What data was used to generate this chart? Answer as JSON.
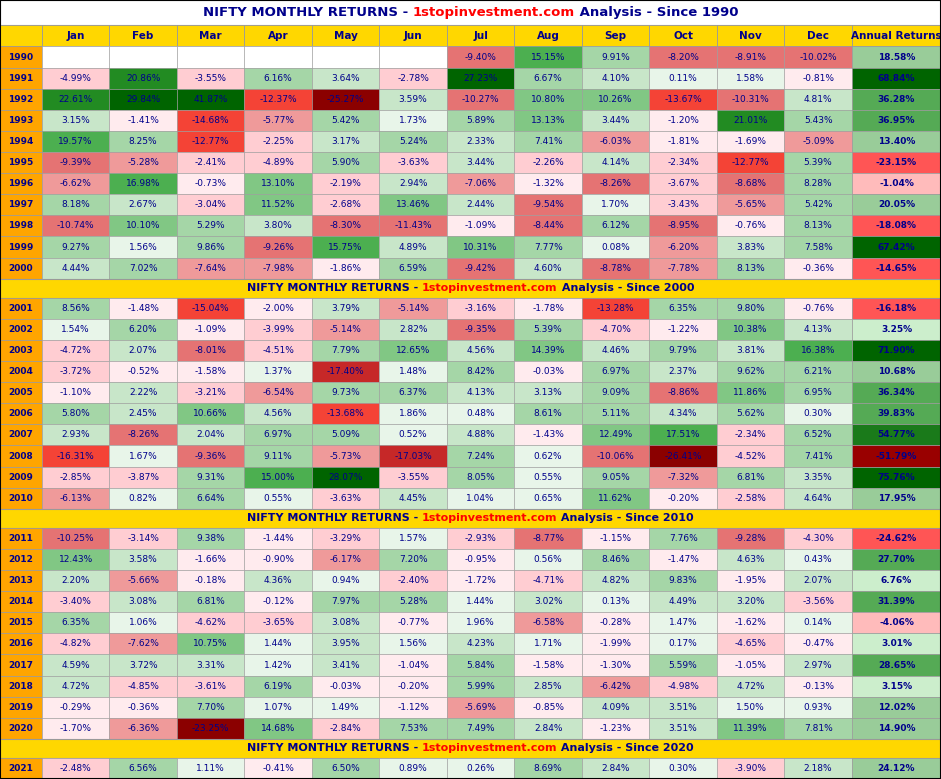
{
  "rows": [
    {
      "year": 1990,
      "Jan": null,
      "Feb": null,
      "Mar": null,
      "Apr": null,
      "May": null,
      "Jun": null,
      "Jul": -9.4,
      "Aug": 15.15,
      "Sep": 9.91,
      "Oct": -8.2,
      "Nov": -8.91,
      "Dec": -10.02,
      "Annual": 18.58
    },
    {
      "year": 1991,
      "Jan": -4.99,
      "Feb": 20.86,
      "Mar": -3.55,
      "Apr": 6.16,
      "May": 3.64,
      "Jun": -2.78,
      "Jul": 27.23,
      "Aug": 6.67,
      "Sep": 4.1,
      "Oct": 0.11,
      "Nov": 1.58,
      "Dec": -0.81,
      "Annual": 68.84
    },
    {
      "year": 1992,
      "Jan": 22.61,
      "Feb": 29.84,
      "Mar": 41.87,
      "Apr": -12.37,
      "May": -25.27,
      "Jun": 3.59,
      "Jul": -10.27,
      "Aug": 10.8,
      "Sep": 10.26,
      "Oct": -13.67,
      "Nov": -10.31,
      "Dec": 4.81,
      "Annual": 36.28
    },
    {
      "year": 1993,
      "Jan": 3.15,
      "Feb": -1.41,
      "Mar": -14.68,
      "Apr": -5.77,
      "May": 5.42,
      "Jun": 1.73,
      "Jul": 5.89,
      "Aug": 13.13,
      "Sep": 3.44,
      "Oct": -1.2,
      "Nov": 21.01,
      "Dec": 5.43,
      "Annual": 36.95
    },
    {
      "year": 1994,
      "Jan": 19.57,
      "Feb": 8.25,
      "Mar": -12.77,
      "Apr": -2.25,
      "May": 3.17,
      "Jun": 5.24,
      "Jul": 2.33,
      "Aug": 7.41,
      "Sep": -6.03,
      "Oct": -1.81,
      "Nov": -1.69,
      "Dec": -5.09,
      "Annual": 13.4
    },
    {
      "year": 1995,
      "Jan": -9.39,
      "Feb": -5.28,
      "Mar": -2.41,
      "Apr": -4.89,
      "May": 5.9,
      "Jun": -3.63,
      "Jul": 3.44,
      "Aug": -2.26,
      "Sep": 4.14,
      "Oct": -2.34,
      "Nov": -12.77,
      "Dec": 5.39,
      "Annual": -23.15
    },
    {
      "year": 1996,
      "Jan": -6.62,
      "Feb": 16.98,
      "Mar": -0.73,
      "Apr": 13.1,
      "May": -2.19,
      "Jun": 2.94,
      "Jul": -7.06,
      "Aug": -1.32,
      "Sep": -8.26,
      "Oct": -3.67,
      "Nov": -8.68,
      "Dec": 8.28,
      "Annual": -1.04
    },
    {
      "year": 1997,
      "Jan": 8.18,
      "Feb": 2.67,
      "Mar": -3.04,
      "Apr": 11.52,
      "May": -2.68,
      "Jun": 13.46,
      "Jul": 2.44,
      "Aug": -9.54,
      "Sep": 1.7,
      "Oct": -3.43,
      "Nov": -5.65,
      "Dec": 5.42,
      "Annual": 20.05
    },
    {
      "year": 1998,
      "Jan": -10.74,
      "Feb": 10.1,
      "Mar": 5.29,
      "Apr": 3.8,
      "May": -8.3,
      "Jun": -11.43,
      "Jul": -1.09,
      "Aug": -8.44,
      "Sep": 6.12,
      "Oct": -8.95,
      "Nov": -0.76,
      "Dec": 8.13,
      "Annual": -18.08
    },
    {
      "year": 1999,
      "Jan": 9.27,
      "Feb": 1.56,
      "Mar": 9.86,
      "Apr": -9.26,
      "May": 15.75,
      "Jun": 4.89,
      "Jul": 10.31,
      "Aug": 7.77,
      "Sep": 0.08,
      "Oct": -6.2,
      "Nov": 3.83,
      "Dec": 7.58,
      "Annual": 67.42
    },
    {
      "year": 2000,
      "Jan": 4.44,
      "Feb": 7.02,
      "Mar": -7.64,
      "Apr": -7.98,
      "May": -1.86,
      "Jun": 6.59,
      "Jul": -9.42,
      "Aug": 4.6,
      "Sep": -8.78,
      "Oct": -7.78,
      "Nov": 8.13,
      "Dec": -0.36,
      "Annual": -14.65
    },
    {
      "year": 2001,
      "Jan": 8.56,
      "Feb": -1.48,
      "Mar": -15.04,
      "Apr": -2.0,
      "May": 3.79,
      "Jun": -5.14,
      "Jul": -3.16,
      "Aug": -1.78,
      "Sep": -13.28,
      "Oct": 6.35,
      "Nov": 9.8,
      "Dec": -0.76,
      "Annual": -16.18
    },
    {
      "year": 2002,
      "Jan": 1.54,
      "Feb": 6.2,
      "Mar": -1.09,
      "Apr": -3.99,
      "May": -5.14,
      "Jun": 2.82,
      "Jul": -9.35,
      "Aug": 5.39,
      "Sep": -4.7,
      "Oct": -1.22,
      "Nov": 10.38,
      "Dec": 4.13,
      "Annual": 3.25
    },
    {
      "year": 2003,
      "Jan": -4.72,
      "Feb": 2.07,
      "Mar": -8.01,
      "Apr": -4.51,
      "May": 7.79,
      "Jun": 12.65,
      "Jul": 4.56,
      "Aug": 14.39,
      "Sep": 4.46,
      "Oct": 9.79,
      "Nov": 3.81,
      "Dec": 16.38,
      "Annual": 71.9
    },
    {
      "year": 2004,
      "Jan": -3.72,
      "Feb": -0.52,
      "Mar": -1.58,
      "Apr": 1.37,
      "May": -17.4,
      "Jun": 1.48,
      "Jul": 8.42,
      "Aug": -0.03,
      "Sep": 6.97,
      "Oct": 2.37,
      "Nov": 9.62,
      "Dec": 6.21,
      "Annual": 10.68
    },
    {
      "year": 2005,
      "Jan": -1.1,
      "Feb": 2.22,
      "Mar": -3.21,
      "Apr": -6.54,
      "May": 9.73,
      "Jun": 6.37,
      "Jul": 4.13,
      "Aug": 3.13,
      "Sep": 9.09,
      "Oct": -8.86,
      "Nov": 11.86,
      "Dec": 6.95,
      "Annual": 36.34
    },
    {
      "year": 2006,
      "Jan": 5.8,
      "Feb": 2.45,
      "Mar": 10.66,
      "Apr": 4.56,
      "May": -13.68,
      "Jun": 1.86,
      "Jul": 0.48,
      "Aug": 8.61,
      "Sep": 5.11,
      "Oct": 4.34,
      "Nov": 5.62,
      "Dec": 0.3,
      "Annual": 39.83
    },
    {
      "year": 2007,
      "Jan": 2.93,
      "Feb": -8.26,
      "Mar": 2.04,
      "Apr": 6.97,
      "May": 5.09,
      "Jun": 0.52,
      "Jul": 4.88,
      "Aug": -1.43,
      "Sep": 12.49,
      "Oct": 17.51,
      "Nov": -2.34,
      "Dec": 6.52,
      "Annual": 54.77
    },
    {
      "year": 2008,
      "Jan": -16.31,
      "Feb": 1.67,
      "Mar": -9.36,
      "Apr": 9.11,
      "May": -5.73,
      "Jun": -17.03,
      "Jul": 7.24,
      "Aug": 0.62,
      "Sep": -10.06,
      "Oct": -26.41,
      "Nov": -4.52,
      "Dec": 7.41,
      "Annual": -51.79
    },
    {
      "year": 2009,
      "Jan": -2.85,
      "Feb": -3.87,
      "Mar": 9.31,
      "Apr": 15.0,
      "May": 28.07,
      "Jun": -3.55,
      "Jul": 8.05,
      "Aug": 0.55,
      "Sep": 9.05,
      "Oct": -7.32,
      "Nov": 6.81,
      "Dec": 3.35,
      "Annual": 75.76
    },
    {
      "year": 2010,
      "Jan": -6.13,
      "Feb": 0.82,
      "Mar": 6.64,
      "Apr": 0.55,
      "May": -3.63,
      "Jun": 4.45,
      "Jul": 1.04,
      "Aug": 0.65,
      "Sep": 11.62,
      "Oct": -0.2,
      "Nov": -2.58,
      "Dec": 4.64,
      "Annual": 17.95
    },
    {
      "year": 2011,
      "Jan": -10.25,
      "Feb": -3.14,
      "Mar": 9.38,
      "Apr": -1.44,
      "May": -3.29,
      "Jun": 1.57,
      "Jul": -2.93,
      "Aug": -8.77,
      "Sep": -1.15,
      "Oct": 7.76,
      "Nov": -9.28,
      "Dec": -4.3,
      "Annual": -24.62
    },
    {
      "year": 2012,
      "Jan": 12.43,
      "Feb": 3.58,
      "Mar": -1.66,
      "Apr": -0.9,
      "May": -6.17,
      "Jun": 7.2,
      "Jul": -0.95,
      "Aug": 0.56,
      "Sep": 8.46,
      "Oct": -1.47,
      "Nov": 4.63,
      "Dec": 0.43,
      "Annual": 27.7
    },
    {
      "year": 2013,
      "Jan": 2.2,
      "Feb": -5.66,
      "Mar": -0.18,
      "Apr": 4.36,
      "May": 0.94,
      "Jun": -2.4,
      "Jul": -1.72,
      "Aug": -4.71,
      "Sep": 4.82,
      "Oct": 9.83,
      "Nov": -1.95,
      "Dec": 2.07,
      "Annual": 6.76
    },
    {
      "year": 2014,
      "Jan": -3.4,
      "Feb": 3.08,
      "Mar": 6.81,
      "Apr": -0.12,
      "May": 7.97,
      "Jun": 5.28,
      "Jul": 1.44,
      "Aug": 3.02,
      "Sep": 0.13,
      "Oct": 4.49,
      "Nov": 3.2,
      "Dec": -3.56,
      "Annual": 31.39
    },
    {
      "year": 2015,
      "Jan": 6.35,
      "Feb": 1.06,
      "Mar": -4.62,
      "Apr": -3.65,
      "May": 3.08,
      "Jun": -0.77,
      "Jul": 1.96,
      "Aug": -6.58,
      "Sep": -0.28,
      "Oct": 1.47,
      "Nov": -1.62,
      "Dec": 0.14,
      "Annual": -4.06
    },
    {
      "year": 2016,
      "Jan": -4.82,
      "Feb": -7.62,
      "Mar": 10.75,
      "Apr": 1.44,
      "May": 3.95,
      "Jun": 1.56,
      "Jul": 4.23,
      "Aug": 1.71,
      "Sep": -1.99,
      "Oct": 0.17,
      "Nov": -4.65,
      "Dec": -0.47,
      "Annual": 3.01
    },
    {
      "year": 2017,
      "Jan": 4.59,
      "Feb": 3.72,
      "Mar": 3.31,
      "Apr": 1.42,
      "May": 3.41,
      "Jun": -1.04,
      "Jul": 5.84,
      "Aug": -1.58,
      "Sep": -1.3,
      "Oct": 5.59,
      "Nov": -1.05,
      "Dec": 2.97,
      "Annual": 28.65
    },
    {
      "year": 2018,
      "Jan": 4.72,
      "Feb": -4.85,
      "Mar": -3.61,
      "Apr": 6.19,
      "May": -0.03,
      "Jun": -0.2,
      "Jul": 5.99,
      "Aug": 2.85,
      "Sep": -6.42,
      "Oct": -4.98,
      "Nov": 4.72,
      "Dec": -0.13,
      "Annual": 3.15
    },
    {
      "year": 2019,
      "Jan": -0.29,
      "Feb": -0.36,
      "Mar": 7.7,
      "Apr": 1.07,
      "May": 1.49,
      "Jun": -1.12,
      "Jul": -5.69,
      "Aug": -0.85,
      "Sep": 4.09,
      "Oct": 3.51,
      "Nov": 1.5,
      "Dec": 0.93,
      "Annual": 12.02
    },
    {
      "year": 2020,
      "Jan": -1.7,
      "Feb": -6.36,
      "Mar": -23.25,
      "Apr": 14.68,
      "May": -2.84,
      "Jun": 7.53,
      "Jul": 7.49,
      "Aug": 2.84,
      "Sep": -1.23,
      "Oct": 3.51,
      "Nov": 11.39,
      "Dec": 7.81,
      "Annual": 14.9
    },
    {
      "year": 2021,
      "Jan": -2.48,
      "Feb": 6.56,
      "Mar": 1.11,
      "Apr": -0.41,
      "May": 6.5,
      "Jun": 0.89,
      "Jul": 0.26,
      "Aug": 8.69,
      "Sep": 2.84,
      "Oct": 0.3,
      "Nov": -3.9,
      "Dec": 2.18,
      "Annual": 24.12
    }
  ],
  "section_years": [
    2000,
    2010,
    2020
  ],
  "section_labels": {
    "2000": "NIFTY MONTHLY RETURNS - 1stopinvestment.com Analysis - Since 2000",
    "2010": "NIFTY MONTHLY RETURNS - 1stopinvestment.com Analysis - Since 2010",
    "2020": "NIFTY MONTHLY RETURNS - 1stopinvestment.com Analysis - Since 2020"
  },
  "col_labels": [
    "",
    "Jan",
    "Feb",
    "Mar",
    "Apr",
    "May",
    "Jun",
    "Jul",
    "Aug",
    "Sep",
    "Oct",
    "Nov",
    "Dec",
    "Annual Returns"
  ],
  "col_ratios": [
    0.62,
    1.0,
    1.0,
    1.0,
    1.0,
    1.0,
    1.0,
    1.0,
    1.0,
    1.0,
    1.0,
    1.0,
    1.0,
    1.32
  ],
  "title_part1": "NIFTY MONTHLY RETURNS - ",
  "title_part2": "1stopinvestment.com",
  "title_part3": " Analysis - Since 1990",
  "title_fontsize": 9.5,
  "header_fontsize": 7.5,
  "cell_fontsize": 6.5,
  "year_bg": "#FFA500",
  "col_header_bg": "#FFD700",
  "section_header_bg": "#FFD700",
  "empty_cell_bg": "#FFFFFF",
  "border_color": "#999999",
  "text_color": "#00008B",
  "title_bg": "#FFFFFF"
}
